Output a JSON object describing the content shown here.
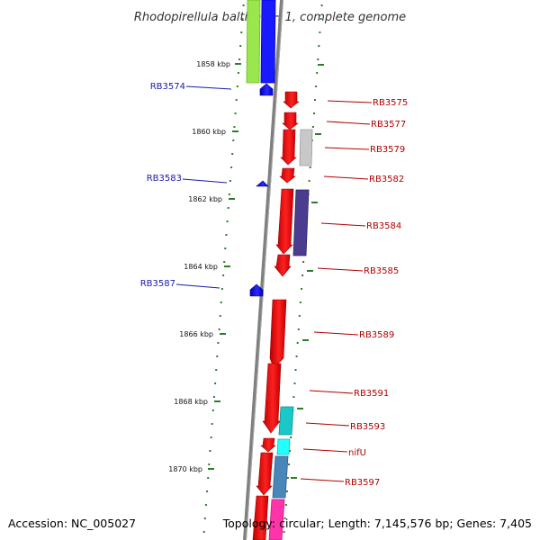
{
  "title": "Rhodopirellula baltica SH 1, complete genome",
  "footer": {
    "accession": "Accession: NC_005027",
    "topology": "Topology: circular; Length: 7,145,576 bp; Genes: 7,405"
  },
  "colors": {
    "backbone": "#808080",
    "forward_gene": "#ff1a1a",
    "reverse_gene": "#1a1aff",
    "forward_label": "#b00000",
    "reverse_label": "#1a1aa8",
    "tick": "#2e7d2e"
  },
  "ruler": [
    {
      "label": "1858 kbp"
    },
    {
      "label": "1860 kbp"
    },
    {
      "label": "1862 kbp"
    },
    {
      "label": "1864 kbp"
    },
    {
      "label": "1866 kbp"
    },
    {
      "label": "1868 kbp"
    },
    {
      "label": "1870 kbp"
    }
  ],
  "genes_left": [
    {
      "label": "RB3574",
      "color": "#1a1aff"
    },
    {
      "label": "RB3583",
      "color": "#1a1aff"
    },
    {
      "label": "RB3587",
      "color": "#1a1aff"
    }
  ],
  "genes_right": [
    {
      "label": "RB3575",
      "color": "#ff1a1a"
    },
    {
      "label": "RB3577",
      "color": "#ff1a1a"
    },
    {
      "label": "RB3579",
      "color": "#ff1a1a"
    },
    {
      "label": "RB3582",
      "color": "#ff1a1a"
    },
    {
      "label": "RB3584",
      "color": "#ff1a1a"
    },
    {
      "label": "RB3585",
      "color": "#ff1a1a"
    },
    {
      "label": "RB3589",
      "color": "#ff1a1a"
    },
    {
      "label": "RB3591",
      "color": "#ff1a1a"
    },
    {
      "label": "RB3593",
      "color": "#ff1a1a"
    },
    {
      "label": "nifU",
      "color": "#ff1a1a"
    },
    {
      "label": "RB3597",
      "color": "#ff1a1a"
    }
  ],
  "features": [
    {
      "name": "green",
      "color": "#99e64d"
    },
    {
      "name": "blue",
      "color": "#1a1aff"
    },
    {
      "name": "light-gray",
      "color": "#c8c8c8"
    },
    {
      "name": "dark-purple",
      "color": "#4a3d8f"
    },
    {
      "name": "cyan",
      "color": "#1ac8c8"
    },
    {
      "name": "bright-cyan",
      "color": "#22ffff"
    },
    {
      "name": "steel-blue",
      "color": "#4a86b8"
    },
    {
      "name": "magenta",
      "color": "#ff33aa"
    }
  ]
}
